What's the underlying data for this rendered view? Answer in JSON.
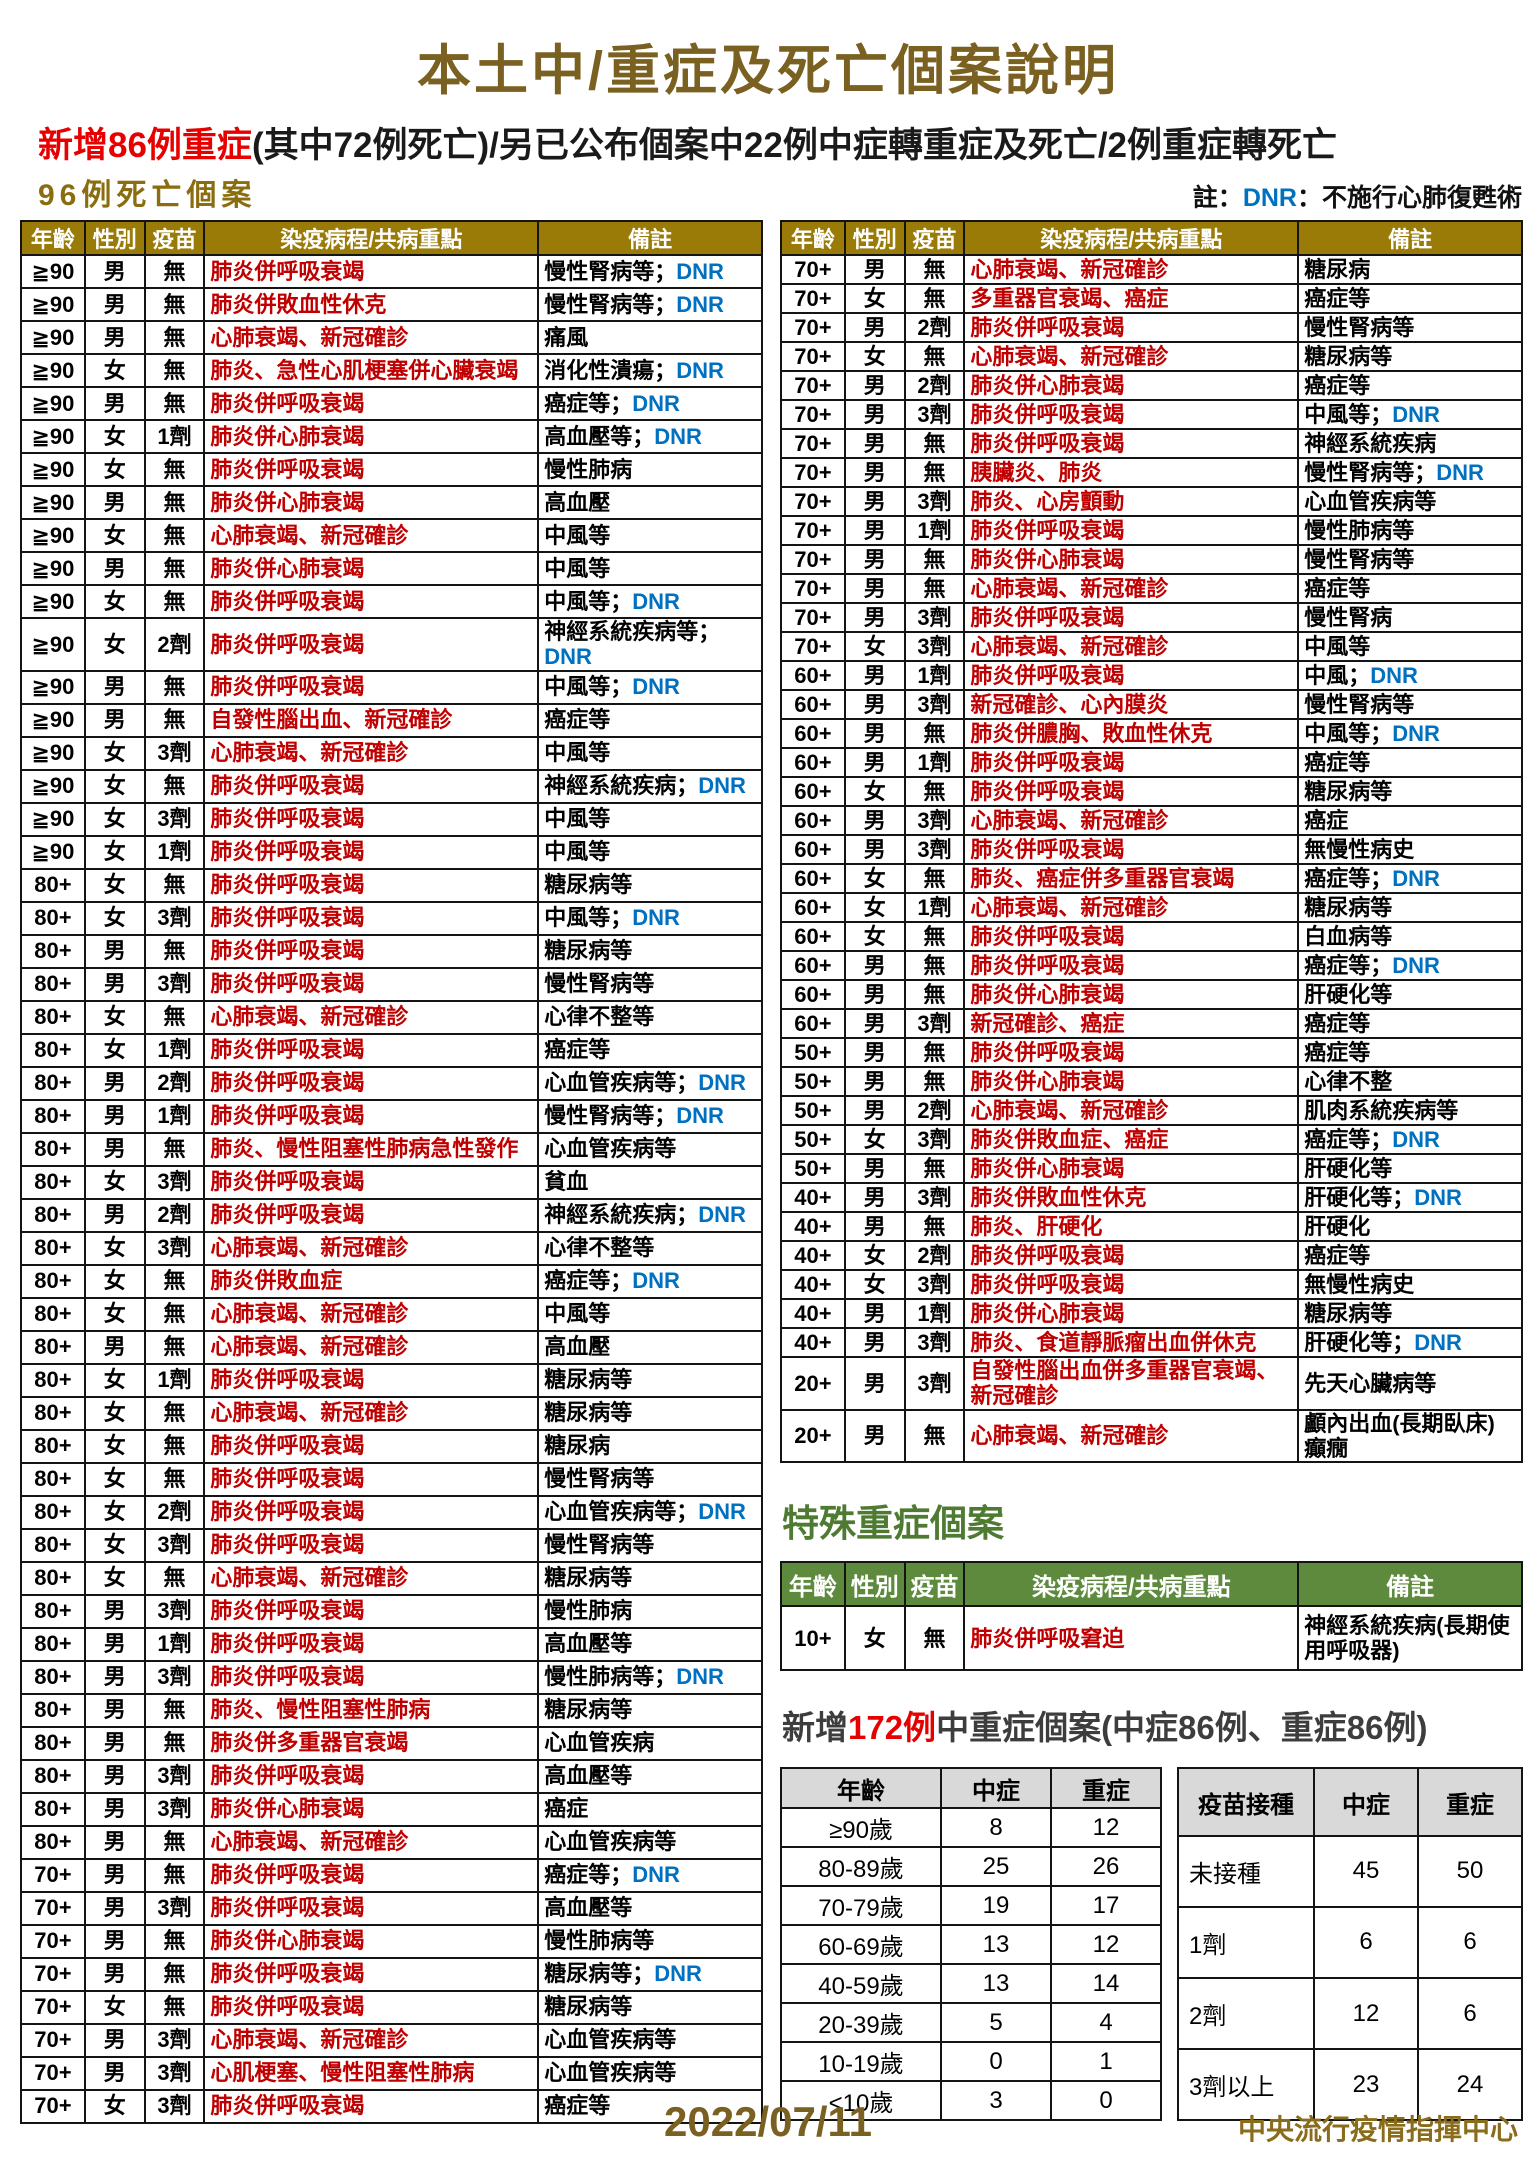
{
  "page": {
    "title": "本土中/重症及死亡個案說明",
    "subtitle_red": "新增86例重症",
    "subtitle_black": "(其中72例死亡)/另已公布個案中22例中症轉重症及死亡/2例重症轉死亡",
    "deaths_heading": "96例死亡個案",
    "note_prefix": "註：",
    "note_dnr": "DNR",
    "note_suffix": "：不施行心肺復甦術",
    "footer_date": "2022/07/11",
    "footer_org": "中央流行疫情指揮中心"
  },
  "colors": {
    "title_gold": "#7a6021",
    "table_header_gold": "#9a7b08",
    "disease_red": "#c00000",
    "highlight_red": "#e60000",
    "dnr_blue": "#0070c0",
    "green_heading": "#4e7a31",
    "green_header_bg": "#5d8a3d",
    "summary_header_gray": "#d9d9d9"
  },
  "death_table": {
    "headers": [
      "年齡",
      "性別",
      "疫苗",
      "染疫病程/共病重點",
      "備註"
    ],
    "left_rows": [
      {
        "age": "≧90",
        "sex": "男",
        "vax": "無",
        "course": "肺炎併呼吸衰竭",
        "note": "慢性腎病等",
        "dnr": true
      },
      {
        "age": "≧90",
        "sex": "男",
        "vax": "無",
        "course": "肺炎併敗血性休克",
        "note": "慢性腎病等",
        "dnr": true
      },
      {
        "age": "≧90",
        "sex": "男",
        "vax": "無",
        "course": "心肺衰竭、新冠確診",
        "note": "痛風",
        "dnr": false
      },
      {
        "age": "≧90",
        "sex": "女",
        "vax": "無",
        "course": "肺炎、急性心肌梗塞併心臟衰竭",
        "note": "消化性潰瘍",
        "dnr": true
      },
      {
        "age": "≧90",
        "sex": "男",
        "vax": "無",
        "course": "肺炎併呼吸衰竭",
        "note": "癌症等",
        "dnr": true
      },
      {
        "age": "≧90",
        "sex": "女",
        "vax": "1劑",
        "course": "肺炎併心肺衰竭",
        "note": "高血壓等",
        "dnr": true
      },
      {
        "age": "≧90",
        "sex": "女",
        "vax": "無",
        "course": "肺炎併呼吸衰竭",
        "note": "慢性肺病",
        "dnr": false
      },
      {
        "age": "≧90",
        "sex": "男",
        "vax": "無",
        "course": "肺炎併心肺衰竭",
        "note": "高血壓",
        "dnr": false
      },
      {
        "age": "≧90",
        "sex": "女",
        "vax": "無",
        "course": "心肺衰竭、新冠確診",
        "note": "中風等",
        "dnr": false
      },
      {
        "age": "≧90",
        "sex": "男",
        "vax": "無",
        "course": "肺炎併心肺衰竭",
        "note": "中風等",
        "dnr": false
      },
      {
        "age": "≧90",
        "sex": "女",
        "vax": "無",
        "course": "肺炎併呼吸衰竭",
        "note": "中風等",
        "dnr": true
      },
      {
        "age": "≧90",
        "sex": "女",
        "vax": "2劑",
        "course": "肺炎併呼吸衰竭",
        "note": "神經系統疾病等",
        "dnr": true
      },
      {
        "age": "≧90",
        "sex": "男",
        "vax": "無",
        "course": "肺炎併呼吸衰竭",
        "note": "中風等",
        "dnr": true
      },
      {
        "age": "≧90",
        "sex": "男",
        "vax": "無",
        "course": "自發性腦出血、新冠確診",
        "note": "癌症等",
        "dnr": false
      },
      {
        "age": "≧90",
        "sex": "女",
        "vax": "3劑",
        "course": "心肺衰竭、新冠確診",
        "note": "中風等",
        "dnr": false
      },
      {
        "age": "≧90",
        "sex": "女",
        "vax": "無",
        "course": "肺炎併呼吸衰竭",
        "note": "神經系統疾病",
        "dnr": true
      },
      {
        "age": "≧90",
        "sex": "女",
        "vax": "3劑",
        "course": "肺炎併呼吸衰竭",
        "note": "中風等",
        "dnr": false
      },
      {
        "age": "≧90",
        "sex": "女",
        "vax": "1劑",
        "course": "肺炎併呼吸衰竭",
        "note": "中風等",
        "dnr": false
      },
      {
        "age": "80+",
        "sex": "女",
        "vax": "無",
        "course": "肺炎併呼吸衰竭",
        "note": "糖尿病等",
        "dnr": false
      },
      {
        "age": "80+",
        "sex": "女",
        "vax": "3劑",
        "course": "肺炎併呼吸衰竭",
        "note": "中風等",
        "dnr": true
      },
      {
        "age": "80+",
        "sex": "男",
        "vax": "無",
        "course": "肺炎併呼吸衰竭",
        "note": "糖尿病等",
        "dnr": false
      },
      {
        "age": "80+",
        "sex": "男",
        "vax": "3劑",
        "course": "肺炎併呼吸衰竭",
        "note": "慢性腎病等",
        "dnr": false
      },
      {
        "age": "80+",
        "sex": "女",
        "vax": "無",
        "course": "心肺衰竭、新冠確診",
        "note": "心律不整等",
        "dnr": false
      },
      {
        "age": "80+",
        "sex": "女",
        "vax": "1劑",
        "course": "肺炎併呼吸衰竭",
        "note": "癌症等",
        "dnr": false
      },
      {
        "age": "80+",
        "sex": "男",
        "vax": "2劑",
        "course": "肺炎併呼吸衰竭",
        "note": "心血管疾病等",
        "dnr": true
      },
      {
        "age": "80+",
        "sex": "男",
        "vax": "1劑",
        "course": "肺炎併呼吸衰竭",
        "note": "慢性腎病等",
        "dnr": true
      },
      {
        "age": "80+",
        "sex": "男",
        "vax": "無",
        "course": "肺炎、慢性阻塞性肺病急性發作",
        "note": "心血管疾病等",
        "dnr": false
      },
      {
        "age": "80+",
        "sex": "女",
        "vax": "3劑",
        "course": "肺炎併呼吸衰竭",
        "note": "貧血",
        "dnr": false
      },
      {
        "age": "80+",
        "sex": "男",
        "vax": "2劑",
        "course": "肺炎併呼吸衰竭",
        "note": "神經系統疾病",
        "dnr": true
      },
      {
        "age": "80+",
        "sex": "女",
        "vax": "3劑",
        "course": "心肺衰竭、新冠確診",
        "note": "心律不整等",
        "dnr": false
      },
      {
        "age": "80+",
        "sex": "女",
        "vax": "無",
        "course": "肺炎併敗血症",
        "note": "癌症等",
        "dnr": true
      },
      {
        "age": "80+",
        "sex": "女",
        "vax": "無",
        "course": "心肺衰竭、新冠確診",
        "note": "中風等",
        "dnr": false
      },
      {
        "age": "80+",
        "sex": "男",
        "vax": "無",
        "course": "心肺衰竭、新冠確診",
        "note": "高血壓",
        "dnr": false
      },
      {
        "age": "80+",
        "sex": "女",
        "vax": "1劑",
        "course": "肺炎併呼吸衰竭",
        "note": "糖尿病等",
        "dnr": false
      },
      {
        "age": "80+",
        "sex": "女",
        "vax": "無",
        "course": "心肺衰竭、新冠確診",
        "note": "糖尿病等",
        "dnr": false
      },
      {
        "age": "80+",
        "sex": "女",
        "vax": "無",
        "course": "肺炎併呼吸衰竭",
        "note": "糖尿病",
        "dnr": false
      },
      {
        "age": "80+",
        "sex": "女",
        "vax": "無",
        "course": "肺炎併呼吸衰竭",
        "note": "慢性腎病等",
        "dnr": false
      },
      {
        "age": "80+",
        "sex": "女",
        "vax": "2劑",
        "course": "肺炎併呼吸衰竭",
        "note": "心血管疾病等",
        "dnr": true
      },
      {
        "age": "80+",
        "sex": "女",
        "vax": "3劑",
        "course": "肺炎併呼吸衰竭",
        "note": "慢性腎病等",
        "dnr": false
      },
      {
        "age": "80+",
        "sex": "女",
        "vax": "無",
        "course": "心肺衰竭、新冠確診",
        "note": "糖尿病等",
        "dnr": false
      },
      {
        "age": "80+",
        "sex": "男",
        "vax": "3劑",
        "course": "肺炎併呼吸衰竭",
        "note": "慢性肺病",
        "dnr": false
      },
      {
        "age": "80+",
        "sex": "男",
        "vax": "1劑",
        "course": "肺炎併呼吸衰竭",
        "note": "高血壓等",
        "dnr": false
      },
      {
        "age": "80+",
        "sex": "男",
        "vax": "3劑",
        "course": "肺炎併呼吸衰竭",
        "note": "慢性肺病等",
        "dnr": true
      },
      {
        "age": "80+",
        "sex": "男",
        "vax": "無",
        "course": "肺炎、慢性阻塞性肺病",
        "note": "糖尿病等",
        "dnr": false
      },
      {
        "age": "80+",
        "sex": "男",
        "vax": "無",
        "course": "肺炎併多重器官衰竭",
        "note": "心血管疾病",
        "dnr": false
      },
      {
        "age": "80+",
        "sex": "男",
        "vax": "3劑",
        "course": "肺炎併呼吸衰竭",
        "note": "高血壓等",
        "dnr": false
      },
      {
        "age": "80+",
        "sex": "男",
        "vax": "3劑",
        "course": "肺炎併心肺衰竭",
        "note": "癌症",
        "dnr": false
      },
      {
        "age": "80+",
        "sex": "男",
        "vax": "無",
        "course": "心肺衰竭、新冠確診",
        "note": "心血管疾病等",
        "dnr": false
      },
      {
        "age": "70+",
        "sex": "男",
        "vax": "無",
        "course": "肺炎併呼吸衰竭",
        "note": "癌症等",
        "dnr": true
      },
      {
        "age": "70+",
        "sex": "男",
        "vax": "3劑",
        "course": "肺炎併呼吸衰竭",
        "note": "高血壓等",
        "dnr": false
      },
      {
        "age": "70+",
        "sex": "男",
        "vax": "無",
        "course": "肺炎併心肺衰竭",
        "note": "慢性肺病等",
        "dnr": false
      },
      {
        "age": "70+",
        "sex": "男",
        "vax": "無",
        "course": "肺炎併呼吸衰竭",
        "note": "糖尿病等",
        "dnr": true
      },
      {
        "age": "70+",
        "sex": "女",
        "vax": "無",
        "course": "肺炎併呼吸衰竭",
        "note": "糖尿病等",
        "dnr": false
      },
      {
        "age": "70+",
        "sex": "男",
        "vax": "3劑",
        "course": "心肺衰竭、新冠確診",
        "note": "心血管疾病等",
        "dnr": false
      },
      {
        "age": "70+",
        "sex": "男",
        "vax": "3劑",
        "course": "心肌梗塞、慢性阻塞性肺病",
        "note": "心血管疾病等",
        "dnr": false
      },
      {
        "age": "70+",
        "sex": "女",
        "vax": "3劑",
        "course": "肺炎併呼吸衰竭",
        "note": "癌症等",
        "dnr": false
      }
    ],
    "right_rows": [
      {
        "age": "70+",
        "sex": "男",
        "vax": "無",
        "course": "心肺衰竭、新冠確診",
        "note": "糖尿病",
        "dnr": false
      },
      {
        "age": "70+",
        "sex": "女",
        "vax": "無",
        "course": "多重器官衰竭、癌症",
        "note": "癌症等",
        "dnr": false
      },
      {
        "age": "70+",
        "sex": "男",
        "vax": "2劑",
        "course": "肺炎併呼吸衰竭",
        "note": "慢性腎病等",
        "dnr": false
      },
      {
        "age": "70+",
        "sex": "女",
        "vax": "無",
        "course": "心肺衰竭、新冠確診",
        "note": "糖尿病等",
        "dnr": false
      },
      {
        "age": "70+",
        "sex": "男",
        "vax": "2劑",
        "course": "肺炎併心肺衰竭",
        "note": "癌症等",
        "dnr": false
      },
      {
        "age": "70+",
        "sex": "男",
        "vax": "3劑",
        "course": "肺炎併呼吸衰竭",
        "note": "中風等",
        "dnr": true
      },
      {
        "age": "70+",
        "sex": "男",
        "vax": "無",
        "course": "肺炎併呼吸衰竭",
        "note": "神經系統疾病",
        "dnr": false
      },
      {
        "age": "70+",
        "sex": "男",
        "vax": "無",
        "course": "胰臟炎、肺炎",
        "note": "慢性腎病等",
        "dnr": true
      },
      {
        "age": "70+",
        "sex": "男",
        "vax": "3劑",
        "course": "肺炎、心房顫動",
        "note": "心血管疾病等",
        "dnr": false
      },
      {
        "age": "70+",
        "sex": "男",
        "vax": "1劑",
        "course": "肺炎併呼吸衰竭",
        "note": "慢性肺病等",
        "dnr": false
      },
      {
        "age": "70+",
        "sex": "男",
        "vax": "無",
        "course": "肺炎併心肺衰竭",
        "note": "慢性腎病等",
        "dnr": false
      },
      {
        "age": "70+",
        "sex": "男",
        "vax": "無",
        "course": "心肺衰竭、新冠確診",
        "note": "癌症等",
        "dnr": false
      },
      {
        "age": "70+",
        "sex": "男",
        "vax": "3劑",
        "course": "肺炎併呼吸衰竭",
        "note": "慢性腎病",
        "dnr": false
      },
      {
        "age": "70+",
        "sex": "女",
        "vax": "3劑",
        "course": "心肺衰竭、新冠確診",
        "note": "中風等",
        "dnr": false
      },
      {
        "age": "60+",
        "sex": "男",
        "vax": "1劑",
        "course": "肺炎併呼吸衰竭",
        "note": "中風",
        "dnr": true
      },
      {
        "age": "60+",
        "sex": "男",
        "vax": "3劑",
        "course": "新冠確診、心內膜炎",
        "note": "慢性腎病等",
        "dnr": false
      },
      {
        "age": "60+",
        "sex": "男",
        "vax": "無",
        "course": "肺炎併膿胸、敗血性休克",
        "note": "中風等",
        "dnr": true
      },
      {
        "age": "60+",
        "sex": "男",
        "vax": "1劑",
        "course": "肺炎併呼吸衰竭",
        "note": "癌症等",
        "dnr": false
      },
      {
        "age": "60+",
        "sex": "女",
        "vax": "無",
        "course": "肺炎併呼吸衰竭",
        "note": "糖尿病等",
        "dnr": false
      },
      {
        "age": "60+",
        "sex": "男",
        "vax": "3劑",
        "course": "心肺衰竭、新冠確診",
        "note": "癌症",
        "dnr": false
      },
      {
        "age": "60+",
        "sex": "男",
        "vax": "3劑",
        "course": "肺炎併呼吸衰竭",
        "note": "無慢性病史",
        "dnr": false
      },
      {
        "age": "60+",
        "sex": "女",
        "vax": "無",
        "course": "肺炎、癌症併多重器官衰竭",
        "note": "癌症等",
        "dnr": true
      },
      {
        "age": "60+",
        "sex": "女",
        "vax": "1劑",
        "course": "心肺衰竭、新冠確診",
        "note": "糖尿病等",
        "dnr": false
      },
      {
        "age": "60+",
        "sex": "女",
        "vax": "無",
        "course": "肺炎併呼吸衰竭",
        "note": "白血病等",
        "dnr": false
      },
      {
        "age": "60+",
        "sex": "男",
        "vax": "無",
        "course": "肺炎併呼吸衰竭",
        "note": "癌症等",
        "dnr": true
      },
      {
        "age": "60+",
        "sex": "男",
        "vax": "無",
        "course": "肺炎併心肺衰竭",
        "note": "肝硬化等",
        "dnr": false
      },
      {
        "age": "60+",
        "sex": "男",
        "vax": "3劑",
        "course": "新冠確診、癌症",
        "note": "癌症等",
        "dnr": false
      },
      {
        "age": "50+",
        "sex": "男",
        "vax": "無",
        "course": "肺炎併呼吸衰竭",
        "note": "癌症等",
        "dnr": false
      },
      {
        "age": "50+",
        "sex": "男",
        "vax": "無",
        "course": "肺炎併心肺衰竭",
        "note": "心律不整",
        "dnr": false
      },
      {
        "age": "50+",
        "sex": "男",
        "vax": "2劑",
        "course": "心肺衰竭、新冠確診",
        "note": "肌肉系統疾病等",
        "dnr": false
      },
      {
        "age": "50+",
        "sex": "女",
        "vax": "3劑",
        "course": "肺炎併敗血症、癌症",
        "note": "癌症等",
        "dnr": true
      },
      {
        "age": "50+",
        "sex": "男",
        "vax": "無",
        "course": "肺炎併心肺衰竭",
        "note": "肝硬化等",
        "dnr": false
      },
      {
        "age": "40+",
        "sex": "男",
        "vax": "3劑",
        "course": "肺炎併敗血性休克",
        "note": "肝硬化等",
        "dnr": true
      },
      {
        "age": "40+",
        "sex": "男",
        "vax": "無",
        "course": "肺炎、肝硬化",
        "note": "肝硬化",
        "dnr": false
      },
      {
        "age": "40+",
        "sex": "女",
        "vax": "2劑",
        "course": "肺炎併呼吸衰竭",
        "note": "癌症等",
        "dnr": false
      },
      {
        "age": "40+",
        "sex": "女",
        "vax": "3劑",
        "course": "肺炎併呼吸衰竭",
        "note": "無慢性病史",
        "dnr": false
      },
      {
        "age": "40+",
        "sex": "男",
        "vax": "1劑",
        "course": "肺炎併心肺衰竭",
        "note": "糖尿病等",
        "dnr": false
      },
      {
        "age": "40+",
        "sex": "男",
        "vax": "3劑",
        "course": "肺炎、食道靜脈瘤出血併休克",
        "note": "肝硬化等",
        "dnr": true
      },
      {
        "age": "20+",
        "sex": "男",
        "vax": "3劑",
        "course": "自發性腦出血併多重器官衰竭、新冠確診",
        "note": "先天心臟病等",
        "dnr": false
      },
      {
        "age": "20+",
        "sex": "男",
        "vax": "無",
        "course": "心肺衰竭、新冠確診",
        "note": "顱內出血(長期臥床)\n癲癇",
        "dnr": false
      }
    ]
  },
  "special_section": {
    "heading": "特殊重症個案",
    "headers": [
      "年齡",
      "性別",
      "疫苗",
      "染疫病程/共病重點",
      "備註"
    ],
    "rows": [
      {
        "age": "10+",
        "sex": "女",
        "vax": "無",
        "course": "肺炎併呼吸窘迫",
        "note": "神經系統疾病(長期使用呼吸器)",
        "dnr": false
      }
    ]
  },
  "new_cases_section": {
    "heading_prefix": "新增",
    "heading_red": "172例",
    "heading_suffix": "中重症個案(中症86例、重症86例)",
    "age_table": {
      "headers": [
        "年齡",
        "中症",
        "重症"
      ],
      "rows": [
        [
          "≥90歲",
          "8",
          "12"
        ],
        [
          "80-89歲",
          "25",
          "26"
        ],
        [
          "70-79歲",
          "19",
          "17"
        ],
        [
          "60-69歲",
          "13",
          "12"
        ],
        [
          "40-59歲",
          "13",
          "14"
        ],
        [
          "20-39歲",
          "5",
          "4"
        ],
        [
          "10-19歲",
          "0",
          "1"
        ],
        [
          "<10歲",
          "3",
          "0"
        ]
      ]
    },
    "vaccine_table": {
      "headers": [
        "疫苗接種",
        "中症",
        "重症"
      ],
      "rows": [
        [
          "未接種",
          "45",
          "50"
        ],
        [
          "1劑",
          "6",
          "6"
        ],
        [
          "2劑",
          "12",
          "6"
        ],
        [
          "3劑以上",
          "23",
          "24"
        ]
      ]
    }
  }
}
